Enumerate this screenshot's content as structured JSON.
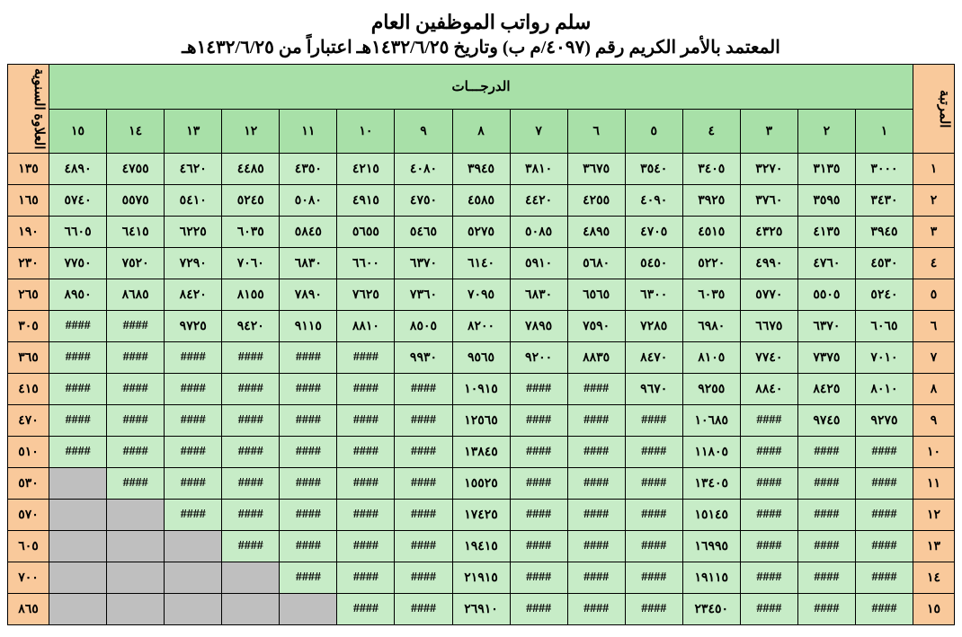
{
  "title": "سلم رواتب الموظفين العام",
  "subtitle": "المعتمد بالأمر الكريم رقم (٤٠٩٧/م ب) وتاريخ ١٤٣٢/٦/٢٥هـ اعتباراً من ١٤٣٢/٦/٢٥هـ",
  "headers": {
    "rank": "المرتبة",
    "grades": "الدرجـــات",
    "annual_allowance": "العلاوة السنوية",
    "grade_numbers": [
      "١",
      "٢",
      "٣",
      "٤",
      "٥",
      "٦",
      "٧",
      "٨",
      "٩",
      "١٠",
      "١١",
      "١٢",
      "١٣",
      "١٤",
      "١٥"
    ]
  },
  "rows": [
    {
      "rank": "١",
      "allowance": "١٣٥",
      "cells": [
        "٣٠٠٠",
        "٣١٣٥",
        "٣٢٧٠",
        "٣٤٠٥",
        "٣٥٤٠",
        "٣٦٧٥",
        "٣٨١٠",
        "٣٩٤٥",
        "٤٠٨٠",
        "٤٢١٥",
        "٤٣٥٠",
        "٤٤٨٥",
        "٤٦٢٠",
        "٤٧٥٥",
        "٤٨٩٠"
      ]
    },
    {
      "rank": "٢",
      "allowance": "١٦٥",
      "cells": [
        "٣٤٣٠",
        "٣٥٩٥",
        "٣٧٦٠",
        "٣٩٢٥",
        "٤٠٩٠",
        "٤٢٥٥",
        "٤٤٢٠",
        "٤٥٨٥",
        "٤٧٥٠",
        "٤٩١٥",
        "٥٠٨٠",
        "٥٢٤٥",
        "٥٤١٠",
        "٥٥٧٥",
        "٥٧٤٠"
      ]
    },
    {
      "rank": "٣",
      "allowance": "١٩٠",
      "cells": [
        "٣٩٤٥",
        "٤١٣٥",
        "٤٣٢٥",
        "٤٥١٥",
        "٤٧٠٥",
        "٤٨٩٥",
        "٥٠٨٥",
        "٥٢٧٥",
        "٥٤٦٥",
        "٥٦٥٥",
        "٥٨٤٥",
        "٦٠٣٥",
        "٦٢٢٥",
        "٦٤١٥",
        "٦٦٠٥"
      ]
    },
    {
      "rank": "٤",
      "allowance": "٢٣٠",
      "cells": [
        "٤٥٣٠",
        "٤٧٦٠",
        "٤٩٩٠",
        "٥٢٢٠",
        "٥٤٥٠",
        "٥٦٨٠",
        "٥٩١٠",
        "٦١٤٠",
        "٦٣٧٠",
        "٦٦٠٠",
        "٦٨٣٠",
        "٧٠٦٠",
        "٧٢٩٠",
        "٧٥٢٠",
        "٧٧٥٠"
      ]
    },
    {
      "rank": "٥",
      "allowance": "٢٦٥",
      "cells": [
        "٥٢٤٠",
        "٥٥٠٥",
        "٥٧٧٠",
        "٦٠٣٥",
        "٦٣٠٠",
        "٦٥٦٥",
        "٦٨٣٠",
        "٧٠٩٥",
        "٧٣٦٠",
        "٧٦٢٥",
        "٧٨٩٠",
        "٨١٥٥",
        "٨٤٢٠",
        "٨٦٨٥",
        "٨٩٥٠"
      ]
    },
    {
      "rank": "٦",
      "allowance": "٣٠٥",
      "cells": [
        "٦٠٦٥",
        "٦٣٧٠",
        "٦٦٧٥",
        "٦٩٨٠",
        "٧٢٨٥",
        "٧٥٩٠",
        "٧٨٩٥",
        "٨٢٠٠",
        "٨٥٠٥",
        "٨٨١٠",
        "٩١١٥",
        "٩٤٢٠",
        "٩٧٢٥",
        "####",
        "####"
      ]
    },
    {
      "rank": "٧",
      "allowance": "٣٦٥",
      "cells": [
        "٧٠١٠",
        "٧٣٧٥",
        "٧٧٤٠",
        "٨١٠٥",
        "٨٤٧٠",
        "٨٨٣٥",
        "٩٢٠٠",
        "٩٥٦٥",
        "٩٩٣٠",
        "####",
        "####",
        "####",
        "####",
        "####",
        "####"
      ]
    },
    {
      "rank": "٨",
      "allowance": "٤١٥",
      "cells": [
        "٨٠١٠",
        "٨٤٢٥",
        "٨٨٤٠",
        "٩٢٥٥",
        "٩٦٧٠",
        "####",
        "####",
        "١٠٩١٥",
        "####",
        "####",
        "####",
        "####",
        "####",
        "####",
        "####"
      ]
    },
    {
      "rank": "٩",
      "allowance": "٤٧٠",
      "cells": [
        "٩٢٧٥",
        "٩٧٤٥",
        "####",
        "١٠٦٨٥",
        "####",
        "####",
        "####",
        "١٢٥٦٥",
        "####",
        "####",
        "####",
        "####",
        "####",
        "####",
        "####"
      ]
    },
    {
      "rank": "١٠",
      "allowance": "٥١٠",
      "cells": [
        "####",
        "####",
        "####",
        "١١٨٠٥",
        "####",
        "####",
        "####",
        "١٣٨٤٥",
        "####",
        "####",
        "####",
        "####",
        "####",
        "####",
        "####"
      ]
    },
    {
      "rank": "١١",
      "allowance": "٥٣٠",
      "cells": [
        "####",
        "####",
        "####",
        "١٣٤٠٥",
        "####",
        "####",
        "####",
        "١٥٥٢٥",
        "####",
        "####",
        "####",
        "####",
        "####",
        "####",
        null
      ]
    },
    {
      "rank": "١٢",
      "allowance": "٥٧٠",
      "cells": [
        "####",
        "####",
        "####",
        "١٥١٤٥",
        "####",
        "####",
        "####",
        "١٧٤٢٥",
        "####",
        "####",
        "####",
        "####",
        "####",
        null,
        null
      ]
    },
    {
      "rank": "١٣",
      "allowance": "٦٠٥",
      "cells": [
        "####",
        "####",
        "####",
        "١٦٩٩٥",
        "####",
        "####",
        "####",
        "١٩٤١٥",
        "####",
        "####",
        "####",
        "####",
        null,
        null,
        null
      ]
    },
    {
      "rank": "١٤",
      "allowance": "٧٠٠",
      "cells": [
        "####",
        "####",
        "####",
        "١٩١١٥",
        "####",
        "####",
        "####",
        "٢١٩١٥",
        "####",
        "####",
        "####",
        null,
        null,
        null,
        null
      ]
    },
    {
      "rank": "١٥",
      "allowance": "٨٦٥",
      "cells": [
        "####",
        "####",
        "####",
        "٢٣٤٥٠",
        "####",
        "####",
        "####",
        "٢٦٩١٠",
        "####",
        "####",
        null,
        null,
        null,
        null,
        null
      ]
    }
  ],
  "colors": {
    "peach": "#f9c99b",
    "green_header": "#a8e0a8",
    "green_cell": "#c7ecc7",
    "gray": "#bfbfbf",
    "border": "#000000",
    "background": "#ffffff"
  }
}
